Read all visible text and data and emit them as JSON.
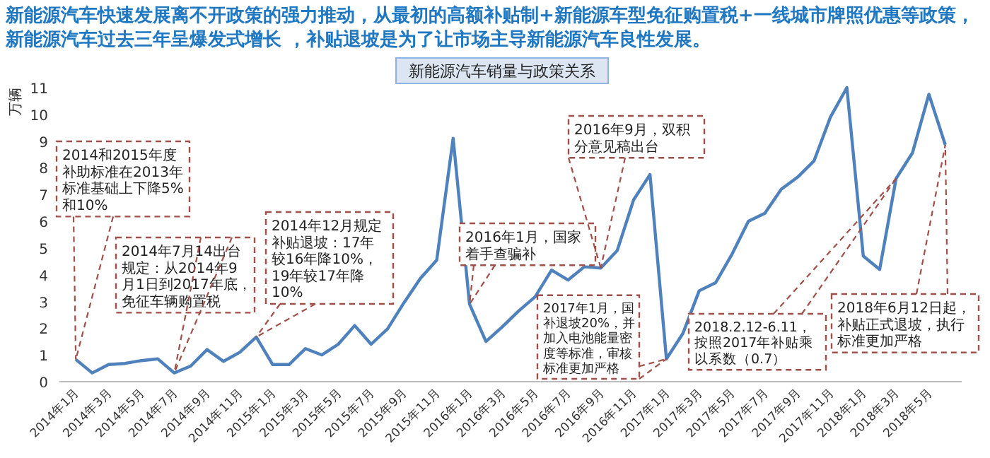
{
  "chart_data": {
    "type": "line",
    "subtitle": "新能源汽车快速发展离不开政策的强力推动，从最初的高额补贴制+新能源车型免征购置税+一线城市牌照优惠等政策，新能源汽车过去三年呈爆发式增长 ，补贴退坡是为了让市场主导新能源汽车良性发展。",
    "title": "新能源汽车销量与政策关系",
    "ylabel": "万辆",
    "x": [
      "2014-01",
      "2014-02",
      "2014-03",
      "2014-04",
      "2014-05",
      "2014-06",
      "2014-07",
      "2014-08",
      "2014-09",
      "2014-10",
      "2014-11",
      "2014-12",
      "2015-01",
      "2015-02",
      "2015-03",
      "2015-04",
      "2015-05",
      "2015-06",
      "2015-07",
      "2015-08",
      "2015-09",
      "2015-10",
      "2015-11",
      "2015-12",
      "2016-01",
      "2016-02",
      "2016-03",
      "2016-04",
      "2016-05",
      "2016-06",
      "2016-07",
      "2016-08",
      "2016-09",
      "2016-10",
      "2016-11",
      "2016-12",
      "2017-01",
      "2017-02",
      "2017-03",
      "2017-04",
      "2017-05",
      "2017-06",
      "2017-07",
      "2017-08",
      "2017-09",
      "2017-10",
      "2017-11",
      "2017-12",
      "2018-01",
      "2018-02",
      "2018-03",
      "2018-04",
      "2018-05",
      "2018-06"
    ],
    "series": [
      {
        "color": "#4f81bd",
        "values": [
          0.83,
          0.33,
          0.64,
          0.68,
          0.79,
          0.85,
          0.33,
          0.58,
          1.2,
          0.76,
          1.1,
          1.67,
          0.64,
          0.64,
          1.24,
          1.0,
          1.4,
          2.1,
          1.4,
          1.97,
          2.95,
          3.86,
          4.55,
          9.1,
          2.9,
          1.5,
          2.05,
          2.65,
          3.18,
          4.17,
          3.8,
          4.3,
          4.25,
          4.9,
          6.8,
          7.75,
          0.85,
          1.8,
          3.4,
          3.7,
          4.77,
          6.0,
          6.3,
          7.2,
          7.65,
          8.26,
          9.9,
          11.0,
          4.7,
          4.2,
          7.6,
          8.56,
          10.75,
          8.86
        ]
      }
    ],
    "xlim": [
      "2013-12",
      "2018-07"
    ],
    "xticks": [
      {
        "value": "2014-01",
        "label": "2014年1月"
      },
      {
        "value": "2014-03",
        "label": "2014年3月"
      },
      {
        "value": "2014-05",
        "label": "2014年5月"
      },
      {
        "value": "2014-07",
        "label": "2014年7月"
      },
      {
        "value": "2014-09",
        "label": "2014年9月"
      },
      {
        "value": "2014-11",
        "label": "2014年11月"
      },
      {
        "value": "2015-01",
        "label": "2015年1月"
      },
      {
        "value": "2015-03",
        "label": "2015年3月"
      },
      {
        "value": "2015-05",
        "label": "2015年5月"
      },
      {
        "value": "2015-07",
        "label": "2015年7月"
      },
      {
        "value": "2015-09",
        "label": "2015年9月"
      },
      {
        "value": "2015-11",
        "label": "2015年11月"
      },
      {
        "value": "2016-01",
        "label": "2016年1月"
      },
      {
        "value": "2016-03",
        "label": "2016年3月"
      },
      {
        "value": "2016-05",
        "label": "2016年5月"
      },
      {
        "value": "2016-07",
        "label": "2016年7月"
      },
      {
        "value": "2016-09",
        "label": "2016年9月"
      },
      {
        "value": "2016-11",
        "label": "2016年11月"
      },
      {
        "value": "2017-01",
        "label": "2017年1月"
      },
      {
        "value": "2017-03",
        "label": "2017年3月"
      },
      {
        "value": "2017-05",
        "label": "2017年5月"
      },
      {
        "value": "2017-07",
        "label": "2017年7月"
      },
      {
        "value": "2017-09",
        "label": "2017年9月"
      },
      {
        "value": "2017-11",
        "label": "2017年11月"
      },
      {
        "value": "2018-01",
        "label": "2018年1月"
      },
      {
        "value": "2018-03",
        "label": "2018年3月"
      },
      {
        "value": "2018-05",
        "label": "2018年5月"
      }
    ],
    "ylim": [
      0,
      11
    ],
    "yticks": [
      0,
      1,
      2,
      3,
      4,
      5,
      6,
      7,
      8,
      9,
      10,
      11
    ],
    "grid": false,
    "marker": "none",
    "line_style": "solid",
    "annotations": [
      {
        "text": "2014和2015年度补助标准在2013年标准基础上下降5%和10%",
        "x": "2014-01",
        "y": 0.83
      },
      {
        "text": "2014年7月14出台规定：从2014年9月1日到2017年底，免征车辆购置税",
        "x": "2014-07",
        "y": 0.33
      },
      {
        "text": "2014年12月规定补贴退坡：17年较16年降10%，19年较17年降10%",
        "x": "2014-12",
        "y": 1.67
      },
      {
        "text": "2016年1月，国家着手查骗补",
        "x": "2016-01",
        "y": 2.9
      },
      {
        "text": "2016年9月，双积分意见稿出台",
        "x": "2016-09",
        "y": 4.25
      },
      {
        "text": "2017年1月，国补退坡20%，并加入电池能量密度等标准，审核标准更加严格",
        "x": "2017-01",
        "y": 0.85
      },
      {
        "text": "2018.2.12-6.11，按照2017年补贴乘以系数（0.7）",
        "x": "2018-03",
        "y": 7.6
      },
      {
        "text": "2018年6月12日起，补贴正式退坡，执行标准更加严格",
        "x": "2018-06",
        "y": 8.86
      }
    ]
  }
}
